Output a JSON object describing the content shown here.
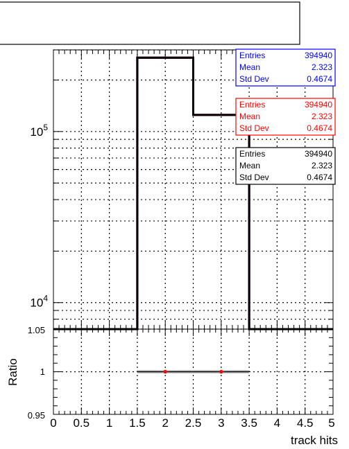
{
  "title_box": {
    "text": ""
  },
  "chart_data": [
    {
      "type": "histogram",
      "log_y": true,
      "grid": true,
      "xlim": [
        0,
        5
      ],
      "ylim_log": [
        7000,
        300000
      ],
      "bin_edges": [
        0,
        1.5,
        2.5,
        3.5,
        5
      ],
      "series": [
        {
          "color": "#0000ff",
          "counts": [
            7000,
            270000,
            125000,
            7000
          ]
        },
        {
          "color": "#ff0000",
          "counts": [
            7000,
            270000,
            125000,
            7000
          ]
        },
        {
          "color": "#000000",
          "counts": [
            7000,
            270000,
            125000,
            7000
          ]
        }
      ],
      "y_ticks": [
        {
          "value": 10000,
          "base": "10",
          "exp": "4"
        },
        {
          "value": 100000,
          "base": "10",
          "exp": "5"
        }
      ],
      "stats_boxes": [
        {
          "color": "#0000ff",
          "rows": [
            {
              "label": "Entries",
              "value": "394940"
            },
            {
              "label": "Mean",
              "value": "2.323"
            },
            {
              "label": "Std Dev",
              "value": "0.4674"
            }
          ]
        },
        {
          "color": "#ff0000",
          "rows": [
            {
              "label": "Entries",
              "value": "394940"
            },
            {
              "label": "Mean",
              "value": "2.323"
            },
            {
              "label": "Std Dev",
              "value": "0.4674"
            }
          ]
        },
        {
          "color": "#000000",
          "rows": [
            {
              "label": "Entries",
              "value": "394940"
            },
            {
              "label": "Mean",
              "value": "2.323"
            },
            {
              "label": "Std Dev",
              "value": "0.4674"
            }
          ]
        }
      ]
    },
    {
      "type": "scatter",
      "xlabel": "track hits",
      "ylabel": "Ratio",
      "xlim": [
        0,
        5
      ],
      "ylim": [
        0.95,
        1.05
      ],
      "grid": true,
      "x_ticks": [
        "0",
        "0.5",
        "1",
        "1.5",
        "2",
        "2.5",
        "3",
        "3.5",
        "4",
        "4.5",
        "5"
      ],
      "y_ticks": [
        "0.95",
        "1",
        "1.05"
      ],
      "points": [
        {
          "x": 2,
          "y": 1,
          "xerr": 0.5
        },
        {
          "x": 3,
          "y": 1,
          "xerr": 0.5
        }
      ],
      "error_band": {
        "x": [
          1.5,
          3.5
        ],
        "y": [
          0.998,
          1.002
        ],
        "color": "#c8c8c8"
      },
      "point_color": "#ff0000"
    }
  ]
}
